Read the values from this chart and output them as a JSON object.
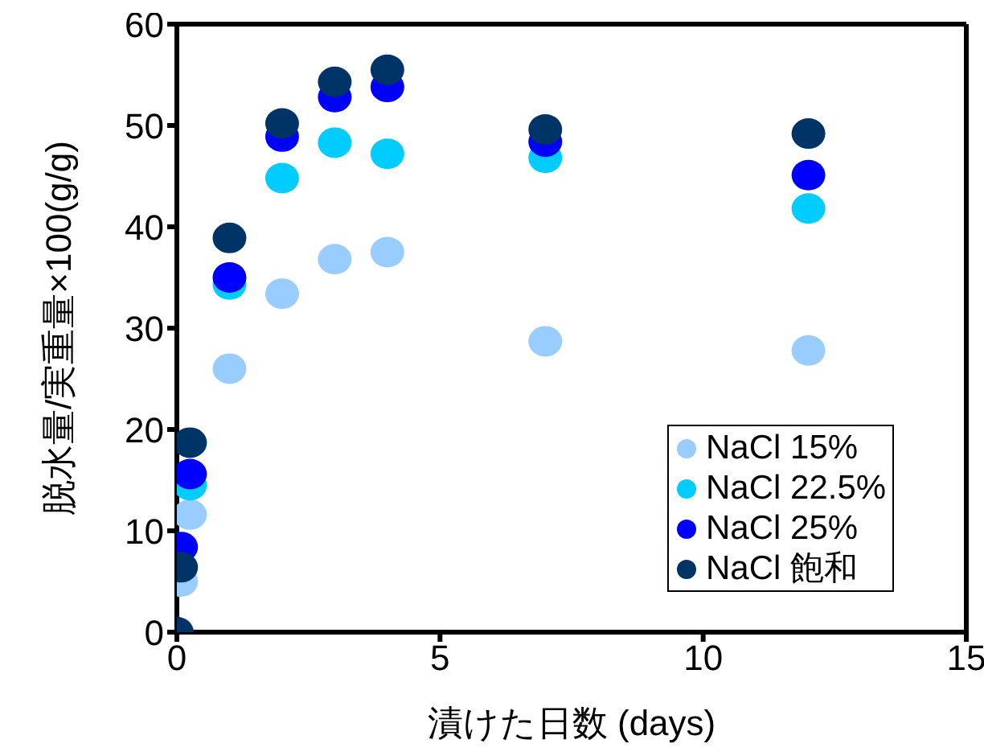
{
  "chart_data": {
    "type": "scatter",
    "xlabel": "漬けた日数 (days)",
    "ylabel": "脱水量/実重量×100(g/g)",
    "xlim": [
      0,
      15
    ],
    "xticks": [
      0,
      5,
      10,
      15
    ],
    "ylim": [
      0,
      60
    ],
    "yticks": [
      0,
      10,
      20,
      30,
      40,
      50,
      60
    ],
    "grid": false,
    "legend": "bottom right",
    "marker": "circle",
    "x": [
      0,
      0.08,
      0.25,
      1,
      2,
      3,
      4,
      7,
      12
    ],
    "series": [
      {
        "name": "NaCl 15%",
        "color": "#99ccff",
        "values": [
          null,
          5.0,
          11.6,
          26.0,
          33.4,
          36.8,
          37.5,
          28.7,
          27.8
        ]
      },
      {
        "name": "NaCl 22.5%",
        "color": "#00ccff",
        "values": [
          null,
          null,
          14.5,
          34.3,
          44.8,
          48.3,
          47.2,
          46.8,
          41.8
        ]
      },
      {
        "name": "NaCl 25%",
        "color": "#0000ff",
        "values": [
          null,
          8.4,
          15.6,
          35.0,
          48.9,
          52.8,
          53.8,
          48.4,
          45.1
        ]
      },
      {
        "name": "NaCl 飽和",
        "color": "#003366",
        "values": [
          0,
          6.4,
          18.7,
          38.9,
          50.2,
          54.3,
          55.5,
          49.6,
          49.2
        ]
      }
    ]
  }
}
